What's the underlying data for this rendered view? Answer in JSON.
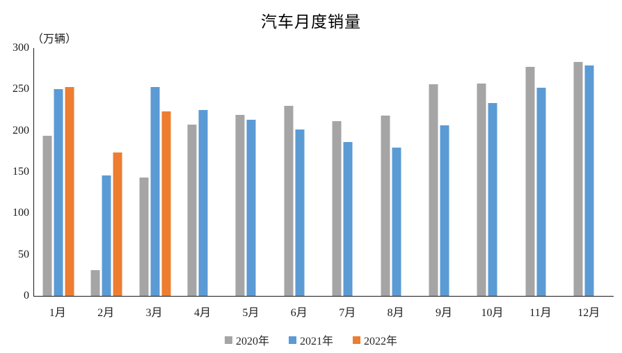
{
  "title": "汽车月度销量",
  "unit_label": "（万辆）",
  "chart_data": {
    "type": "bar",
    "title": "汽车月度销量",
    "ylabel": "（万辆）",
    "xlabel": "",
    "ylim": [
      0,
      300
    ],
    "yticks": [
      0,
      50,
      100,
      150,
      200,
      250,
      300
    ],
    "grid": false,
    "legend_position": "bottom",
    "categories": [
      "1月",
      "2月",
      "3月",
      "4月",
      "5月",
      "6月",
      "7月",
      "8月",
      "9月",
      "10月",
      "11月",
      "12月"
    ],
    "series": [
      {
        "name": "2020年",
        "color": "#A5A5A5",
        "values": [
          194.1,
          31.0,
          143.0,
          207.0,
          219.4,
          230.0,
          211.2,
          218.6,
          256.5,
          257.3,
          277.0,
          283.1
        ]
      },
      {
        "name": "2021年",
        "color": "#5B9BD5",
        "values": [
          250.3,
          145.5,
          252.6,
          225.2,
          212.8,
          201.5,
          186.4,
          179.9,
          206.7,
          233.3,
          252.2,
          278.6
        ]
      },
      {
        "name": "2022年",
        "color": "#ED7D31",
        "values": [
          253.1,
          173.7,
          223.4,
          null,
          null,
          null,
          null,
          null,
          null,
          null,
          null,
          null
        ]
      }
    ]
  },
  "colors": {
    "axis": "#1a1a1a",
    "text": "#262626",
    "series_2020": "#A5A5A5",
    "series_2021": "#5B9BD5",
    "series_2022": "#ED7D31"
  }
}
